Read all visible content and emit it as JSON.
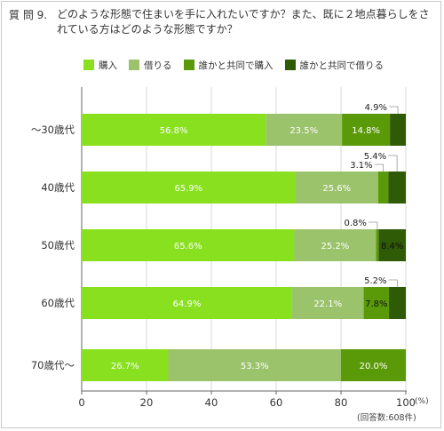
{
  "question": {
    "label": "質 問 9.",
    "text": "どのような形態で住まいを手に入れたいですか？また、既に２地点暮らしをされている方はどのような形態ですか？"
  },
  "colors": {
    "buy": "#88e01e",
    "rent": "#9bc36b",
    "joint_buy": "#5a9a08",
    "joint_rent": "#2f5a06",
    "axis": "#666666",
    "grid": "#d8d8d8"
  },
  "footnote": "(回答数:608件)",
  "chart_data": {
    "type": "bar",
    "orientation": "horizontal",
    "stacked": true,
    "unit": "(%)",
    "categories": [
      "～30歳代",
      "40歳代",
      "50歳代",
      "60歳代",
      "70歳代～"
    ],
    "series": [
      {
        "name": "購入",
        "values": [
          56.8,
          65.9,
          65.6,
          64.9,
          26.7
        ]
      },
      {
        "name": "借りる",
        "values": [
          23.5,
          25.6,
          25.2,
          22.1,
          53.3
        ]
      },
      {
        "name": "誰かと共同で購入",
        "values": [
          14.8,
          3.1,
          0.8,
          7.8,
          20.0
        ]
      },
      {
        "name": "誰かと共同で借りる",
        "values": [
          4.9,
          5.4,
          8.4,
          5.2,
          0.0
        ]
      }
    ],
    "labels": [
      [
        "56.8%",
        "23.5%",
        "14.8%",
        "4.9%"
      ],
      [
        "65.9%",
        "25.6%",
        "3.1%",
        "5.4%"
      ],
      [
        "65.6%",
        "25.2%",
        "0.8%",
        "8.4%"
      ],
      [
        "64.9%",
        "22.1%",
        "7.8%",
        "5.2%"
      ],
      [
        "26.7%",
        "53.3%",
        "20.0%",
        ""
      ]
    ],
    "callouts": [
      {
        "row": 0,
        "series": 3,
        "text": "4.9%"
      },
      {
        "row": 1,
        "series": 2,
        "text": "3.1%"
      },
      {
        "row": 1,
        "series": 3,
        "text": "5.4%"
      },
      {
        "row": 2,
        "series": 2,
        "text": "0.8%"
      },
      {
        "row": 3,
        "series": 3,
        "text": "5.2%"
      }
    ],
    "xlim": [
      0,
      100
    ],
    "xticks": [
      0,
      20,
      40,
      60,
      80,
      100
    ],
    "xtick_labels": [
      "0",
      "20",
      "40",
      "60",
      "80",
      "100"
    ],
    "grid": true,
    "legend_position": "top"
  }
}
